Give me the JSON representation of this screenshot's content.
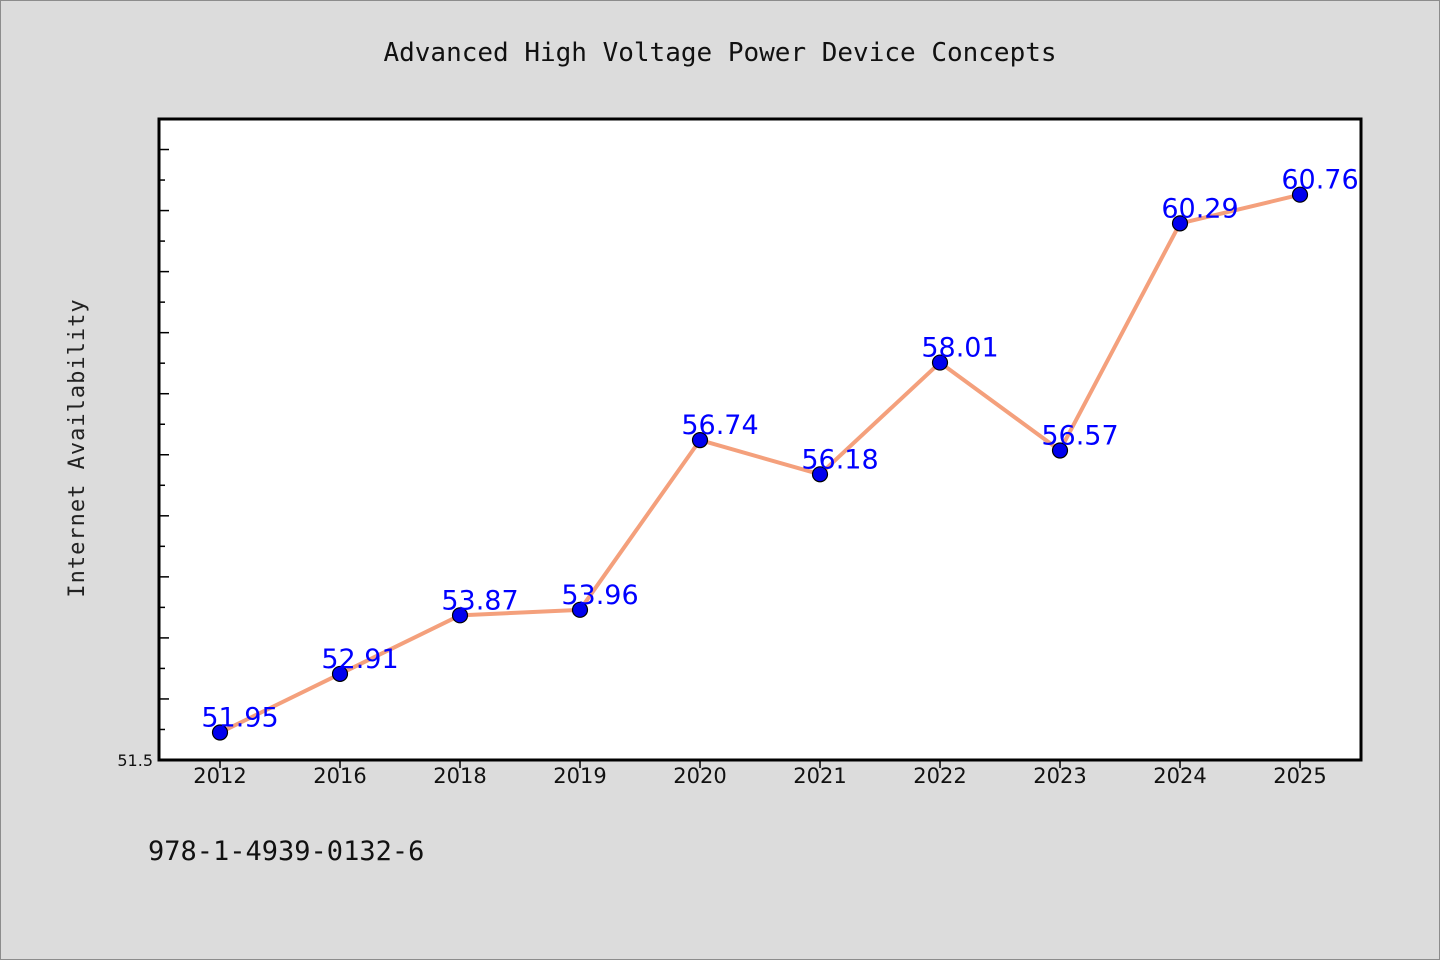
{
  "chart_data": {
    "type": "line",
    "title": "Advanced High Voltage Power Device Concepts",
    "xlabel": "",
    "ylabel": "Internet Availability",
    "categories": [
      "2012",
      "2016",
      "2018",
      "2019",
      "2020",
      "2021",
      "2022",
      "2023",
      "2024",
      "2025"
    ],
    "series": [
      {
        "values": [
          51.95,
          52.91,
          53.87,
          53.96,
          56.74,
          56.18,
          58.01,
          56.57,
          60.29,
          60.76
        ],
        "labels": [
          "51.95",
          "52.91",
          "53.87",
          "53.96",
          "56.74",
          "56.18",
          "58.01",
          "56.57",
          "60.29",
          "60.76"
        ],
        "line_color": "#f4a07c",
        "marker_color": "#0000ee"
      }
    ],
    "ylim": [
      51.5,
      62.0
    ],
    "ytick_min_label": "51.5",
    "grid": false,
    "legend": "none"
  },
  "footnote": "978-1-4939-0132-6"
}
